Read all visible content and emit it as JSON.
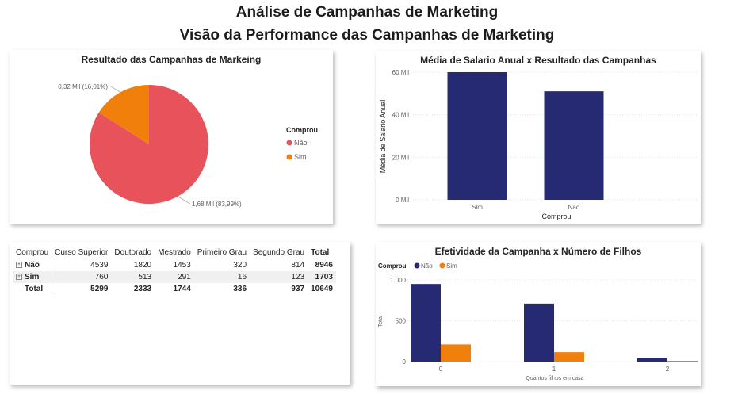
{
  "page": {
    "title_line1": "Análise de Campanhas de Marketing",
    "title_line2": "Visão da Performance das Campanhas de Marketing"
  },
  "chart_data": [
    {
      "type": "pie",
      "title": "Resultado das Campanhas de Markeing",
      "legend_title": "Comprou",
      "legend_position": "right",
      "slices": [
        {
          "name": "Não",
          "value": 1.68,
          "label": "1,68 Mil (83,99%)",
          "color": "#e8535b"
        },
        {
          "name": "Sim",
          "value": 0.32,
          "label": "0,32 Mil (16,01%)",
          "color": "#f07f0b"
        }
      ]
    },
    {
      "type": "bar",
      "title": "Média de Salario Anual x Resultado das Campanhas",
      "xlabel": "Comprou",
      "ylabel": "Média de Salario Anual",
      "categories": [
        "Sim",
        "Não"
      ],
      "values": [
        60,
        51
      ],
      "ylim": [
        0,
        60
      ],
      "yticks": [
        {
          "v": 0,
          "label": "0 Mil"
        },
        {
          "v": 20,
          "label": "20 Mil"
        },
        {
          "v": 40,
          "label": "40 Mil"
        },
        {
          "v": 60,
          "label": "60 Mil"
        }
      ],
      "color": "#252a73",
      "grid": true
    },
    {
      "type": "table",
      "title": "",
      "row_header": "Comprou",
      "columns": [
        "Curso Superior",
        "Doutorado",
        "Mestrado",
        "Primeiro Grau",
        "Segundo Grau",
        "Total"
      ],
      "rows": [
        {
          "label": "Não",
          "values": [
            "4539",
            "1820",
            "1453",
            "320",
            "814",
            "8946"
          ]
        },
        {
          "label": "Sim",
          "values": [
            "760",
            "513",
            "291",
            "16",
            "123",
            "1703"
          ]
        }
      ],
      "total": {
        "label": "Total",
        "values": [
          "5299",
          "2333",
          "1744",
          "336",
          "937",
          "10649"
        ]
      }
    },
    {
      "type": "bar",
      "title": "Efetividade da Campanha x Número de Filhos",
      "xlabel": "Quantos filhos em casa",
      "ylabel": "Total",
      "legend_title": "Comprou",
      "legend_position": "top-left",
      "categories": [
        "0",
        "1",
        "2"
      ],
      "series": [
        {
          "name": "Não",
          "values": [
            950,
            710,
            40
          ],
          "color": "#252a73"
        },
        {
          "name": "Sim",
          "values": [
            210,
            115,
            10
          ],
          "color": "#f07f0b"
        }
      ],
      "ylim": [
        0,
        1000
      ],
      "yticks": [
        {
          "v": 0,
          "label": "0"
        },
        {
          "v": 500,
          "label": "500"
        },
        {
          "v": 1000,
          "label": "1.000"
        }
      ],
      "grid": true
    }
  ]
}
